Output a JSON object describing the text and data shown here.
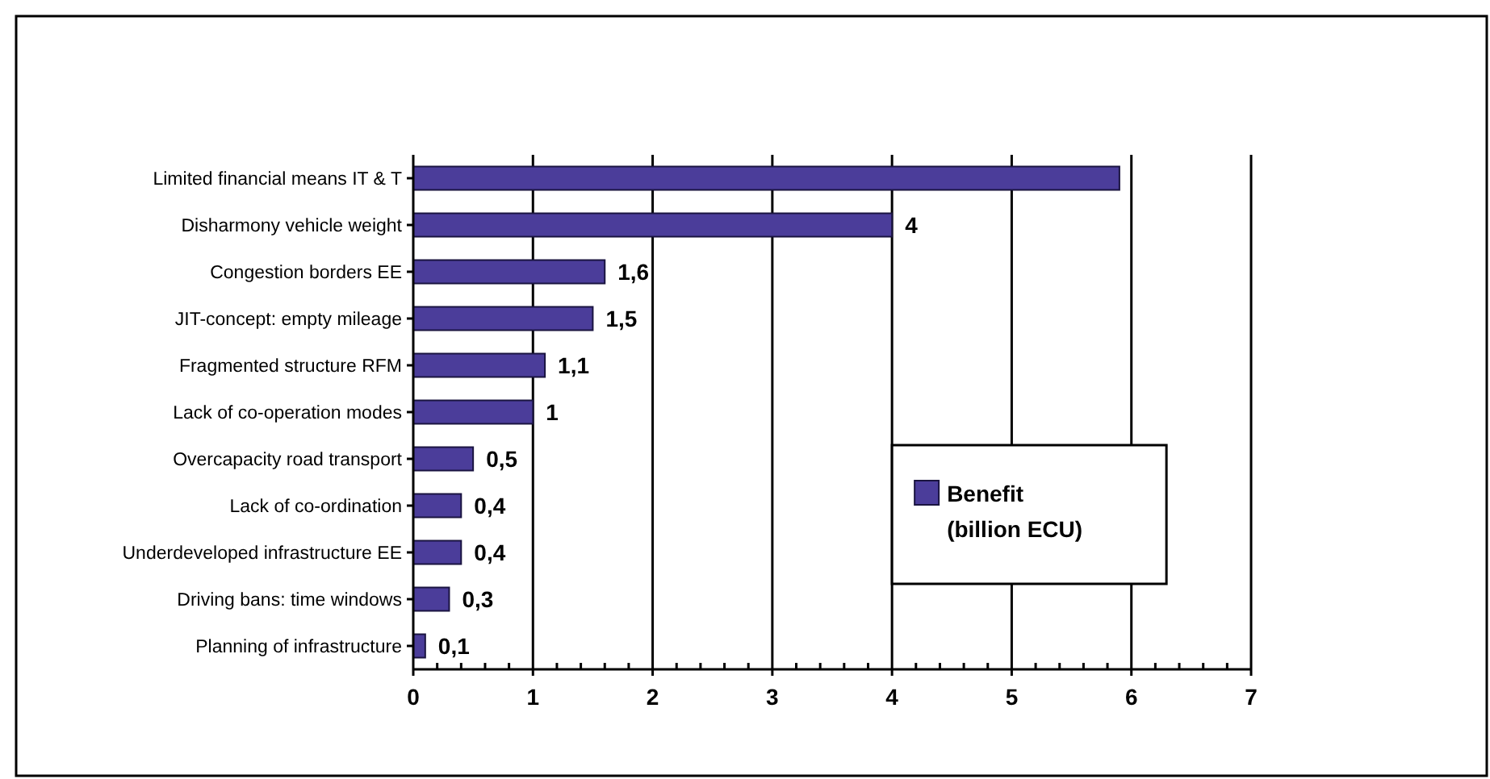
{
  "chart_data": {
    "type": "bar",
    "orientation": "horizontal",
    "categories": [
      "Limited financial means IT & T",
      "Disharmony vehicle weight",
      "Congestion borders EE",
      "JIT-concept: empty mileage",
      "Fragmented structure RFM",
      "Lack of co-operation modes",
      "Overcapacity road transport",
      "Lack of co-ordination",
      "Underdeveloped infrastructure EE",
      "Driving bans: time windows",
      "Planning of infrastructure"
    ],
    "series": [
      {
        "name": "Benefit (billion ECU)",
        "color": "#4b3d9a",
        "values": [
          5.9,
          4,
          1.6,
          1.5,
          1.1,
          1,
          0.5,
          0.4,
          0.4,
          0.3,
          0.1
        ],
        "value_labels": [
          null,
          "4",
          "1,6",
          "1,5",
          "1,1",
          "1",
          "0,5",
          "0,4",
          "0,4",
          "0,3",
          "0,1"
        ]
      }
    ],
    "xlim": [
      0,
      7
    ],
    "xticks": [
      0,
      {
        "value": 0.2,
        "label": null
      },
      {
        "value": 0.4,
        "label": null
      },
      {
        "value": 0.6,
        "label": null
      },
      {
        "value": 0.8,
        "label": null
      },
      1,
      {
        "value": 1.2,
        "label": null
      },
      {
        "value": 1.4,
        "label": null
      },
      {
        "value": 1.6,
        "label": null
      },
      {
        "value": 1.8,
        "label": null
      },
      2,
      {
        "value": 2.2,
        "label": null
      },
      {
        "value": 2.4,
        "label": null
      },
      {
        "value": 2.6,
        "label": null
      },
      {
        "value": 2.8,
        "label": null
      },
      3,
      {
        "value": 3.2,
        "label": null
      },
      {
        "value": 3.4,
        "label": null
      },
      {
        "value": 3.6,
        "label": null
      },
      {
        "value": 3.8,
        "label": null
      },
      4,
      {
        "value": 4.2,
        "label": null
      },
      {
        "value": 4.4,
        "label": null
      },
      {
        "value": 4.6,
        "label": null
      },
      {
        "value": 4.8,
        "label": null
      },
      5,
      {
        "value": 5.2,
        "label": null
      },
      {
        "value": 5.4,
        "label": null
      },
      {
        "value": 5.6,
        "label": null
      },
      {
        "value": 5.8,
        "label": null
      },
      6,
      {
        "value": 6.2,
        "label": null
      },
      {
        "value": 6.4,
        "label": null
      },
      {
        "value": 6.6,
        "label": null
      },
      {
        "value": 6.8,
        "label": null
      },
      7
    ],
    "grid": "x",
    "legend": "right"
  }
}
